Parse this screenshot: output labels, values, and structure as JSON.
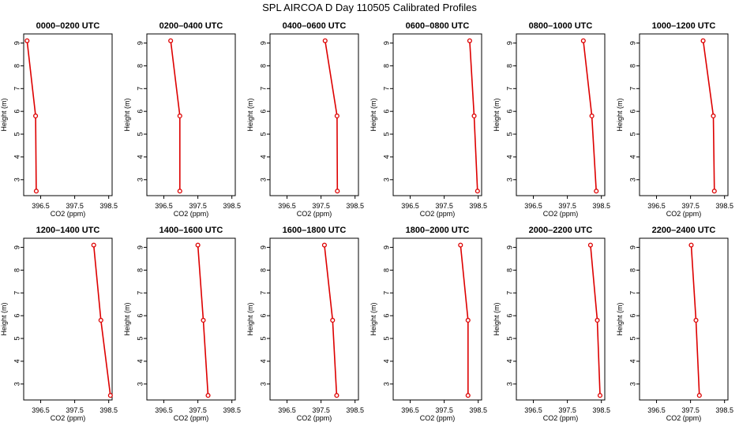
{
  "title": "SPL AIRCOA D  Day 110505  Calibrated Profiles",
  "colors": {
    "line": "#dd0000",
    "marker": "#dd0000",
    "axis": "#000000"
  },
  "chart_data": [
    {
      "type": "line",
      "title": "0000–0200 UTC",
      "xlabel": "CO2 (ppm)",
      "ylabel": "Height (m)",
      "xlim": [
        396.0,
        398.6
      ],
      "ylim": [
        2.3,
        9.4
      ],
      "xticks": [
        "396.5",
        "397.5",
        "398.5"
      ],
      "yticks": [
        "3",
        "4",
        "5",
        "6",
        "7",
        "8",
        "9"
      ],
      "series": [
        {
          "x": [
            396.1,
            396.35,
            396.37
          ],
          "y": [
            9.1,
            5.8,
            2.5
          ]
        }
      ]
    },
    {
      "type": "line",
      "title": "0200–0400 UTC",
      "xlabel": "CO2 (ppm)",
      "ylabel": "Height (m)",
      "xlim": [
        396.0,
        398.6
      ],
      "ylim": [
        2.3,
        9.4
      ],
      "xticks": [
        "396.5",
        "397.5",
        "398.5"
      ],
      "yticks": [
        "3",
        "4",
        "5",
        "6",
        "7",
        "8",
        "9"
      ],
      "series": [
        {
          "x": [
            396.7,
            396.97,
            396.97
          ],
          "y": [
            9.1,
            5.8,
            2.5
          ]
        }
      ]
    },
    {
      "type": "line",
      "title": "0400–0600 UTC",
      "xlabel": "CO2 (ppm)",
      "ylabel": "Height (m)",
      "xlim": [
        396.0,
        398.6
      ],
      "ylim": [
        2.3,
        9.4
      ],
      "xticks": [
        "396.5",
        "397.5",
        "398.5"
      ],
      "yticks": [
        "3",
        "4",
        "5",
        "6",
        "7",
        "8",
        "9"
      ],
      "series": [
        {
          "x": [
            397.62,
            397.97,
            397.98
          ],
          "y": [
            9.1,
            5.8,
            2.5
          ]
        }
      ]
    },
    {
      "type": "line",
      "title": "0600–0800 UTC",
      "xlabel": "CO2 (ppm)",
      "ylabel": "Height (m)",
      "xlim": [
        396.0,
        398.6
      ],
      "ylim": [
        2.3,
        9.4
      ],
      "xticks": [
        "396.5",
        "397.5",
        "398.5"
      ],
      "yticks": [
        "3",
        "4",
        "5",
        "6",
        "7",
        "8",
        "9"
      ],
      "series": [
        {
          "x": [
            398.25,
            398.38,
            398.48
          ],
          "y": [
            9.1,
            5.8,
            2.5
          ]
        }
      ]
    },
    {
      "type": "line",
      "title": "0800–1000 UTC",
      "xlabel": "CO2 (ppm)",
      "ylabel": "Height (m)",
      "xlim": [
        396.0,
        398.6
      ],
      "ylim": [
        2.3,
        9.4
      ],
      "xticks": [
        "396.5",
        "397.5",
        "398.5"
      ],
      "yticks": [
        "3",
        "4",
        "5",
        "6",
        "7",
        "8",
        "9"
      ],
      "series": [
        {
          "x": [
            397.97,
            398.22,
            398.35
          ],
          "y": [
            9.1,
            5.8,
            2.5
          ]
        }
      ]
    },
    {
      "type": "line",
      "title": "1000–1200 UTC",
      "xlabel": "CO2 (ppm)",
      "ylabel": "Height (m)",
      "xlim": [
        396.0,
        398.6
      ],
      "ylim": [
        2.3,
        9.4
      ],
      "xticks": [
        "396.5",
        "397.5",
        "398.5"
      ],
      "yticks": [
        "3",
        "4",
        "5",
        "6",
        "7",
        "8",
        "9"
      ],
      "series": [
        {
          "x": [
            397.87,
            398.17,
            398.2
          ],
          "y": [
            9.1,
            5.8,
            2.5
          ]
        }
      ]
    },
    {
      "type": "line",
      "title": "1200–1400 UTC",
      "xlabel": "CO2 (ppm)",
      "ylabel": "Height (m)",
      "xlim": [
        396.0,
        398.6
      ],
      "ylim": [
        2.3,
        9.4
      ],
      "xticks": [
        "396.5",
        "397.5",
        "398.5"
      ],
      "yticks": [
        "3",
        "4",
        "5",
        "6",
        "7",
        "8",
        "9"
      ],
      "series": [
        {
          "x": [
            398.06,
            398.27,
            398.55
          ],
          "y": [
            9.1,
            5.8,
            2.5
          ]
        }
      ]
    },
    {
      "type": "line",
      "title": "1400–1600 UTC",
      "xlabel": "CO2 (ppm)",
      "ylabel": "Height (m)",
      "xlim": [
        396.0,
        398.6
      ],
      "ylim": [
        2.3,
        9.4
      ],
      "xticks": [
        "396.5",
        "397.5",
        "398.5"
      ],
      "yticks": [
        "3",
        "4",
        "5",
        "6",
        "7",
        "8",
        "9"
      ],
      "series": [
        {
          "x": [
            397.5,
            397.66,
            397.8
          ],
          "y": [
            9.1,
            5.8,
            2.5
          ]
        }
      ]
    },
    {
      "type": "line",
      "title": "1600–1800 UTC",
      "xlabel": "CO2 (ppm)",
      "ylabel": "Height (m)",
      "xlim": [
        396.0,
        398.6
      ],
      "ylim": [
        2.3,
        9.4
      ],
      "xticks": [
        "396.5",
        "397.5",
        "398.5"
      ],
      "yticks": [
        "3",
        "4",
        "5",
        "6",
        "7",
        "8",
        "9"
      ],
      "series": [
        {
          "x": [
            397.6,
            397.84,
            397.96
          ],
          "y": [
            9.1,
            5.8,
            2.5
          ]
        }
      ]
    },
    {
      "type": "line",
      "title": "1800–2000 UTC",
      "xlabel": "CO2 (ppm)",
      "ylabel": "Height (m)",
      "xlim": [
        396.0,
        398.6
      ],
      "ylim": [
        2.3,
        9.4
      ],
      "xticks": [
        "396.5",
        "397.5",
        "398.5"
      ],
      "yticks": [
        "3",
        "4",
        "5",
        "6",
        "7",
        "8",
        "9"
      ],
      "series": [
        {
          "x": [
            397.98,
            398.2,
            398.2
          ],
          "y": [
            9.1,
            5.8,
            2.5
          ]
        }
      ]
    },
    {
      "type": "line",
      "title": "2000–2200 UTC",
      "xlabel": "CO2 (ppm)",
      "ylabel": "Height (m)",
      "xlim": [
        396.0,
        398.6
      ],
      "ylim": [
        2.3,
        9.4
      ],
      "xticks": [
        "396.5",
        "397.5",
        "398.5"
      ],
      "yticks": [
        "3",
        "4",
        "5",
        "6",
        "7",
        "8",
        "9"
      ],
      "series": [
        {
          "x": [
            398.18,
            398.38,
            398.46
          ],
          "y": [
            9.1,
            5.8,
            2.5
          ]
        }
      ]
    },
    {
      "type": "line",
      "title": "2200–2400 UTC",
      "xlabel": "CO2 (ppm)",
      "ylabel": "Height (m)",
      "xlim": [
        396.0,
        398.6
      ],
      "ylim": [
        2.3,
        9.4
      ],
      "xticks": [
        "396.5",
        "397.5",
        "398.5"
      ],
      "yticks": [
        "3",
        "4",
        "5",
        "6",
        "7",
        "8",
        "9"
      ],
      "series": [
        {
          "x": [
            397.52,
            397.66,
            397.76
          ],
          "y": [
            9.1,
            5.8,
            2.5
          ]
        }
      ]
    }
  ]
}
